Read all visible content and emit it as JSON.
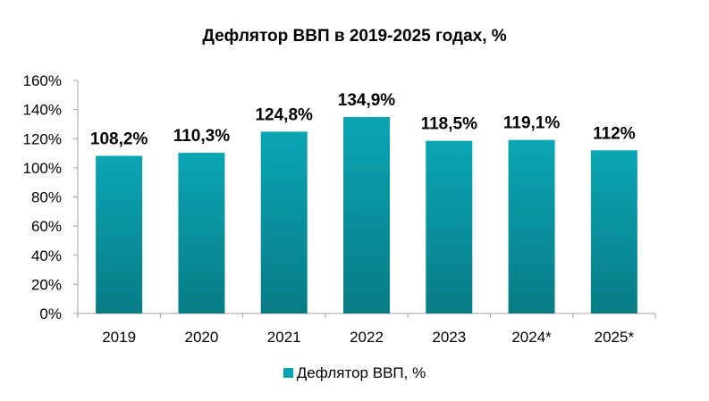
{
  "chart_data": {
    "type": "bar",
    "title": "Дефлятор ВВП в 2019-2025 годах, %",
    "categories": [
      "2019",
      "2020",
      "2021",
      "2022",
      "2023",
      "2024*",
      "2025*"
    ],
    "series": [
      {
        "name": "Дефлятор ВВП, %",
        "values": [
          108.2,
          110.3,
          124.8,
          134.9,
          118.5,
          119.1,
          112
        ]
      }
    ],
    "data_labels": [
      "108,2%",
      "110,3%",
      "124,8%",
      "134,9%",
      "118,5%",
      "119,1%",
      "112%"
    ],
    "ylim": [
      0,
      160
    ],
    "yticks": [
      0,
      20,
      40,
      60,
      80,
      100,
      120,
      140,
      160
    ],
    "ytick_labels": [
      "0%",
      "20%",
      "40%",
      "60%",
      "80%",
      "100%",
      "120%",
      "140%",
      "160%"
    ],
    "grid": false,
    "legend_position": "bottom",
    "colors": {
      "bar_top": "#0AA5B4",
      "bar_bottom": "#087C85",
      "axis": "#A0A0A0"
    }
  }
}
